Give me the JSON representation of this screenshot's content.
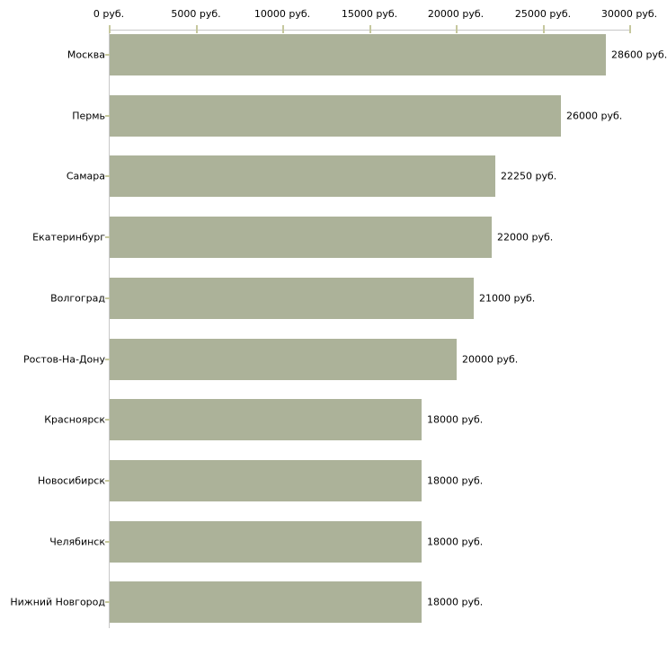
{
  "chart_data": {
    "type": "bar",
    "orientation": "horizontal",
    "title": "",
    "xlabel": "",
    "ylabel": "",
    "unit": "руб.",
    "categories": [
      "Москва",
      "Пермь",
      "Самара",
      "Екатеринбург",
      "Волгоград",
      "Ростов-На-Дону",
      "Красноярск",
      "Новосибирск",
      "Челябинск",
      "Нижний Новгород"
    ],
    "values": [
      28600,
      26000,
      22250,
      22000,
      21000,
      20000,
      18000,
      18000,
      18000,
      18000
    ],
    "value_labels": [
      "28600 руб.",
      "26000 руб.",
      "22250 руб.",
      "22000 руб.",
      "21000 руб.",
      "20000 руб.",
      "18000 руб.",
      "18000 руб.",
      "18000 руб.",
      "18000 руб."
    ],
    "x_tick_values": [
      0,
      5000,
      10000,
      15000,
      20000,
      25000,
      30000
    ],
    "x_tick_labels": [
      "0 руб.",
      "5000 руб.",
      "10000 руб.",
      "15000 руб.",
      "20000 руб.",
      "25000 руб.",
      "30000 руб."
    ],
    "xlim": [
      0,
      30000
    ],
    "grid": false,
    "legend": false,
    "colors": {
      "bar_fill": "#acb299",
      "axis_line": "#c8c8c8",
      "tick_mark": "#c6c89e",
      "text": "#000000",
      "background": "#ffffff"
    }
  }
}
